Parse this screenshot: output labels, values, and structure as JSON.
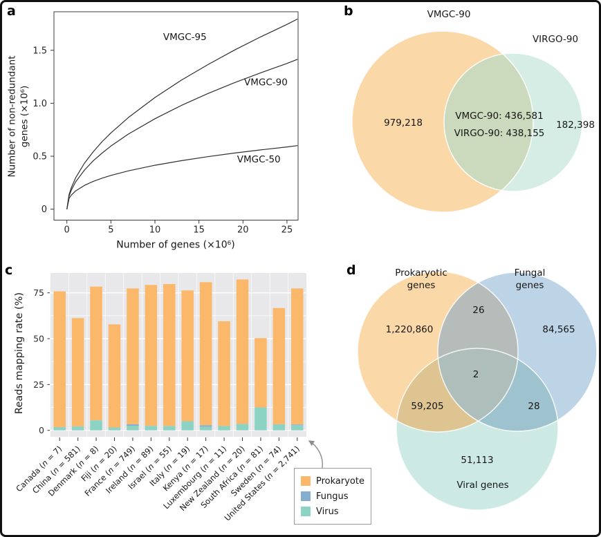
{
  "figure": {
    "panels": {
      "a": "a",
      "b": "b",
      "c": "c",
      "d": "d"
    },
    "background": "#ffffff"
  },
  "chart_data": [
    {
      "id": "a",
      "type": "line",
      "xlabel": "Number of genes (×10⁶)",
      "ylabel_lines": [
        "Number of non-redundant",
        "genes (×10⁶)"
      ],
      "xlim": [
        0,
        26.3
      ],
      "ylim": [
        0,
        1.86
      ],
      "xticks": [
        0,
        5,
        10,
        15,
        20,
        25
      ],
      "yticks": [
        {
          "v": 0,
          "label": "0"
        },
        {
          "v": 0.5,
          "label": "0.5"
        },
        {
          "v": 1.0,
          "label": "1.0"
        },
        {
          "v": 1.5,
          "label": "1.5"
        }
      ],
      "line_color": "#2e2e2e",
      "x": [
        0,
        0.25,
        0.5,
        1,
        2,
        3,
        4,
        5,
        7,
        10,
        13,
        16,
        19,
        22,
        25,
        26.2
      ],
      "series": [
        {
          "name": "VMGC-95",
          "label_at": [
            13.4,
            1.595
          ],
          "values": [
            0,
            0.139,
            0.203,
            0.297,
            0.435,
            0.543,
            0.637,
            0.72,
            0.866,
            1.054,
            1.218,
            1.364,
            1.5,
            1.626,
            1.744,
            1.795
          ]
        },
        {
          "name": "VMGC-90",
          "label_at": [
            22.6,
            1.17
          ],
          "values": [
            0,
            0.125,
            0.18,
            0.258,
            0.37,
            0.457,
            0.53,
            0.596,
            0.71,
            0.854,
            0.979,
            1.091,
            1.193,
            1.287,
            1.376,
            1.415
          ]
        },
        {
          "name": "VMGC-50",
          "label_at": [
            21.8,
            0.44
          ],
          "values": [
            0,
            0.102,
            0.133,
            0.173,
            0.225,
            0.263,
            0.293,
            0.319,
            0.362,
            0.415,
            0.458,
            0.496,
            0.53,
            0.56,
            0.588,
            0.6
          ]
        }
      ]
    },
    {
      "id": "b",
      "type": "venn2",
      "sets": [
        {
          "label": "VMGC-90",
          "color": "#FAD8A8"
        },
        {
          "label": "VIRGO-90",
          "color": "#D5EDE5"
        }
      ],
      "overlap_color": "#CBD9BC",
      "values": {
        "left_only": "979,218",
        "right_only": "182,398",
        "intersection_line1": "VMGC-90: 436,581",
        "intersection_line2": "VIRGO-90: 438,155"
      }
    },
    {
      "id": "c",
      "type": "bar",
      "stacked": true,
      "ylabel": "Reads mapping rate (%)",
      "ylim": [
        0,
        86
      ],
      "yticks": [
        0,
        25,
        50,
        75
      ],
      "panel_bg": "#E8E8EA",
      "grid_color": "#ffffff",
      "categories": [
        "Canada (n = 7)",
        "China (n = 581)",
        "Denmark (n = 8)",
        "Fiji (n = 20)",
        "France (n = 749)",
        "Ireland (n = 89)",
        "Israel (n = 55)",
        "Italy (n = 19)",
        "Kenya (n = 17)",
        "Luxembourg (n = 11)",
        "New Zealand (n = 20)",
        "South Africa (n = 81)",
        "Sweden (n = 74)",
        "United States (n = 2,741)"
      ],
      "series": [
        {
          "name": "Virus",
          "color": "#8DD3C4",
          "values": [
            1.8,
            2.2,
            5.5,
            1.6,
            2.5,
            2.5,
            2.4,
            5.0,
            2.0,
            2.4,
            3.5,
            12.5,
            3.3,
            2.8
          ]
        },
        {
          "name": "Fungus",
          "color": "#85AECE",
          "values": [
            0,
            0,
            0,
            0,
            0.8,
            0,
            0,
            0,
            0.8,
            0,
            0,
            0,
            0,
            0.4
          ]
        },
        {
          "name": "Prokaryote",
          "color": "#FBB76A",
          "values": [
            74.0,
            59.0,
            72.9,
            56.2,
            74.1,
            76.8,
            77.4,
            71.3,
            78.0,
            57.1,
            78.8,
            37.8,
            63.4,
            74.2
          ]
        }
      ],
      "legend": {
        "items": [
          {
            "label": "Prokaryote",
            "color": "#FBB76A"
          },
          {
            "label": "Fungus",
            "color": "#85AECE"
          },
          {
            "label": "Virus",
            "color": "#8DD3C4"
          }
        ]
      }
    },
    {
      "id": "d",
      "type": "venn3",
      "sets": [
        {
          "label": "Prokaryotic\ngenes",
          "value": "1,220,860",
          "color": "#FAD8A8"
        },
        {
          "label": "Fungal\ngenes",
          "value": "84,565",
          "color": "#BDD3E6"
        },
        {
          "label": "Viral genes",
          "value": "51,113",
          "color": "#CCEAE3"
        }
      ],
      "overlaps": {
        "prok_fungal": "26",
        "prok_viral": "59,205",
        "fungal_viral": "28",
        "center": "2",
        "prok_fungal_color": "#B6BCB9",
        "prok_viral_color": "#DDC491",
        "fungal_viral_color": "#9FC3CE",
        "center_color": "#AEBEBB"
      }
    }
  ]
}
